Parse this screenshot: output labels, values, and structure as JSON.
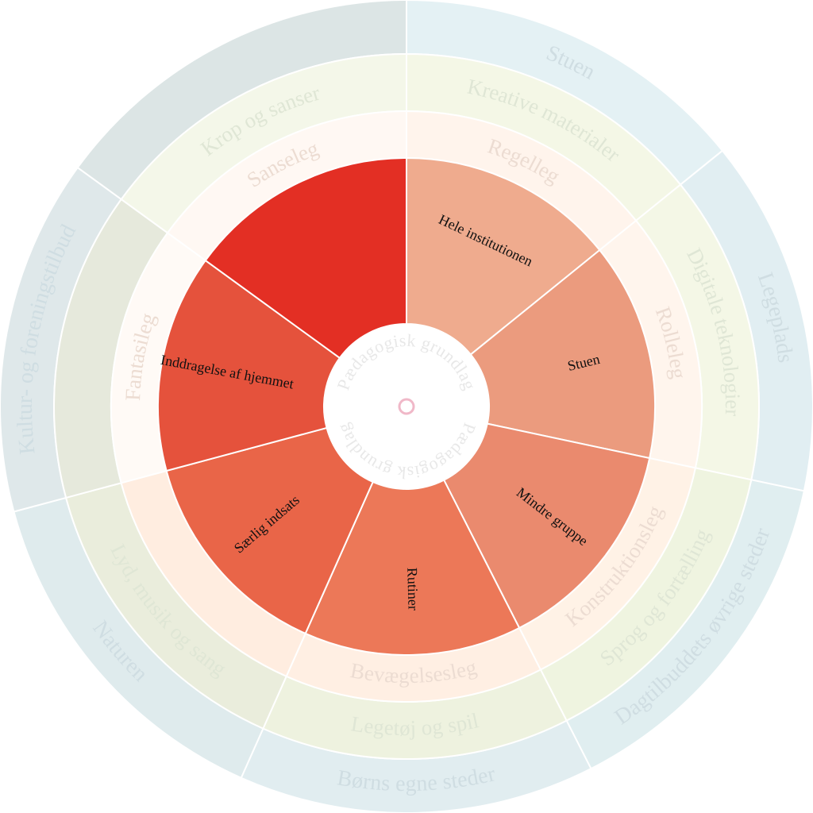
{
  "center": {
    "label": "Pædagogisk grundlag",
    "fill": "#ffffff",
    "marker_color": "#f0b8c8"
  },
  "rings": [
    {
      "id": "outer",
      "segments": [
        {
          "label": "Stuen",
          "color": "#e4f1f4"
        },
        {
          "label": "Legeplads",
          "color": "#e1eef2"
        },
        {
          "label": "Dagtilbuddets øvrige steder",
          "color": "#e0eef0"
        },
        {
          "label": "Børns egne steder",
          "color": "#e1edf0"
        },
        {
          "label": "Naturen",
          "color": "#dfebed"
        },
        {
          "label": "Kultur- og foreningstilbud",
          "color": "#dfe8ea"
        },
        {
          "label": "",
          "color": "#dce5e5"
        }
      ]
    },
    {
      "id": "middle",
      "segments": [
        {
          "label": "Kreative materialer",
          "color": "#f4f7e6"
        },
        {
          "label": "Digitale teknologier",
          "color": "#f4f7e6"
        },
        {
          "label": "Sprog og fortælling",
          "color": "#eff4e0"
        },
        {
          "label": "Legetøj og spil",
          "color": "#eef2df"
        },
        {
          "label": "Lyd, musik og sang",
          "color": "#eaeddc"
        },
        {
          "label": "",
          "color": "#e6e9dc"
        },
        {
          "label": "Krop og sanser",
          "color": "#f4f7e9"
        }
      ]
    },
    {
      "id": "play",
      "segments": [
        {
          "label": "Regelleg",
          "color": "#fff4ec"
        },
        {
          "label": "Rolleleg",
          "color": "#fff5ed"
        },
        {
          "label": "Konstruktionsleg",
          "color": "#fff2e6"
        },
        {
          "label": "Bevægelsesleg",
          "color": "#ffefe3"
        },
        {
          "label": "",
          "color": "#ffede0"
        },
        {
          "label": "Fantasileg",
          "color": "#fffaf6"
        },
        {
          "label": "Sanseleg",
          "color": "#fff8f3"
        }
      ]
    },
    {
      "id": "inner",
      "segments": [
        {
          "label": "Hele institutionen",
          "color": "#efab8e"
        },
        {
          "label": "Stuen",
          "color": "#eb9b7e"
        },
        {
          "label": "Mindre gruppe",
          "color": "#ea8a6e"
        },
        {
          "label": "Rutiner",
          "color": "#ec7858"
        },
        {
          "label": "Særlig indsats",
          "color": "#e96548"
        },
        {
          "label": "Inddragelse af hjemmet",
          "color": "#e5523c"
        },
        {
          "label": "",
          "color": "#e32f24"
        }
      ]
    }
  ]
}
